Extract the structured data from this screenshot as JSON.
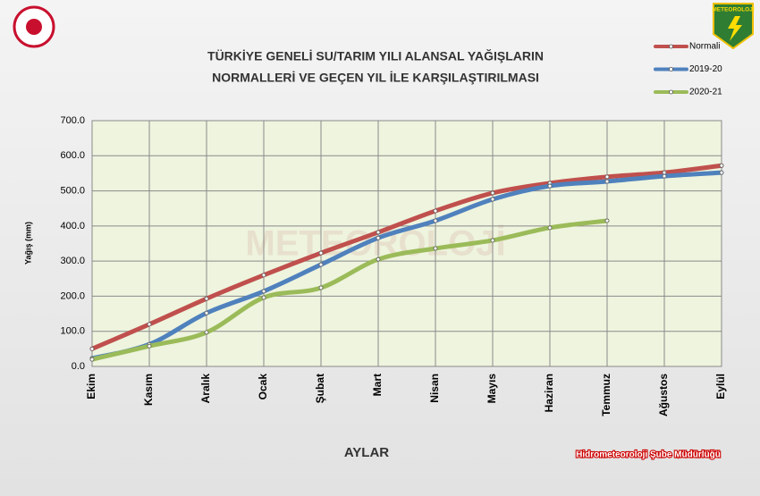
{
  "chart_data": {
    "type": "line",
    "title": [
      "TÜRKİYE GENELİ  SU/TARIM YILI ALANSAL YAĞIŞLARIN",
      "NORMALLERİ VE GEÇEN YIL İLE KARŞILAŞTIRILMASI"
    ],
    "x_label": "AYLAR",
    "y_label": "Yağış (mm)",
    "footer": "Hidrometeoroloji Şube Müdürlüğü",
    "logo_text": "METEOROLOJİ",
    "categories": [
      "Ekim",
      "Kasım",
      "Aralık",
      "Ocak",
      "Şubat",
      "Mart",
      "Nisan",
      "Mayıs",
      "Haziran",
      "Temmuz",
      "Ağustos",
      "Eylül"
    ],
    "series": [
      {
        "name": "Normali",
        "color": "#c0504d",
        "values": [
          50,
          120,
          193,
          260,
          323,
          382,
          443,
          494,
          522,
          540,
          552,
          572
        ]
      },
      {
        "name": "2019-20",
        "color": "#4f81bd",
        "values": [
          23,
          63,
          152,
          214,
          290,
          366,
          415,
          476,
          514,
          527,
          542,
          552
        ]
      },
      {
        "name": "2020-21",
        "color": "#9bbb59",
        "values": [
          20,
          58,
          97,
          196,
          224,
          305,
          336,
          359,
          395,
          415,
          null,
          null
        ]
      }
    ],
    "ylim": [
      0,
      700
    ],
    "yticks": [
      {
        "value": 0,
        "label": "0.0"
      },
      {
        "value": 100,
        "label": "100.0"
      },
      {
        "value": 200,
        "label": "200.0"
      },
      {
        "value": 300,
        "label": "300.0"
      },
      {
        "value": 400,
        "label": "400.0"
      },
      {
        "value": 500,
        "label": "500.0"
      },
      {
        "value": 600,
        "label": "600.0"
      },
      {
        "value": 700,
        "label": "700.0"
      }
    ],
    "grid": true,
    "legend": "top-right"
  }
}
